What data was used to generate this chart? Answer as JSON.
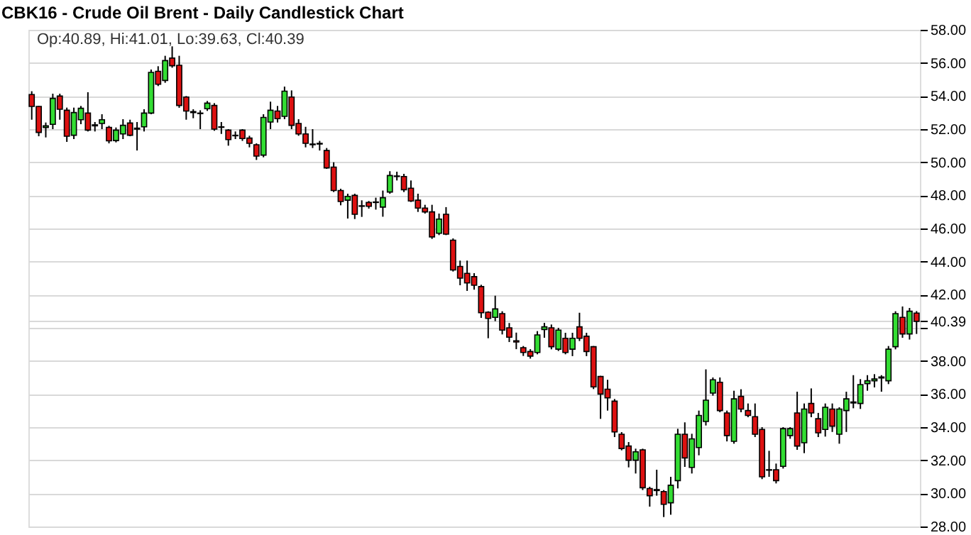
{
  "chart_data": {
    "type": "candlestick",
    "title": "CBK16 - Crude Oil Brent - Daily Candlestick Chart",
    "annotations": [
      "Op:40.89, Hi:41.01, Lo:39.63, Cl:40.39"
    ],
    "categories": [
      null,
      null,
      null,
      null,
      null,
      null,
      null,
      null,
      null,
      null,
      null,
      null,
      null,
      null,
      null,
      null,
      null,
      null,
      null,
      null,
      null,
      null,
      null,
      null,
      null,
      null,
      null,
      null,
      null,
      null,
      null,
      null,
      null,
      null,
      null,
      null,
      null,
      null,
      null,
      null,
      null,
      null,
      null,
      null,
      null,
      null,
      null,
      null,
      null,
      null,
      null,
      null,
      null,
      null,
      null,
      null,
      null,
      null,
      null,
      null,
      null,
      null,
      null,
      null,
      null,
      null,
      null,
      null,
      null,
      null,
      null,
      null,
      null,
      null,
      null,
      null,
      null,
      null,
      null,
      null,
      null,
      null,
      null,
      null,
      null,
      null,
      null,
      null,
      null,
      null,
      null,
      null,
      null,
      null,
      null,
      null,
      null,
      null,
      null,
      null,
      null,
      null,
      null,
      null,
      null,
      null,
      null,
      null,
      null,
      null,
      null,
      null,
      null,
      null,
      null,
      null,
      null,
      null,
      null,
      null,
      null,
      null,
      null,
      null,
      null,
      null,
      null
    ],
    "ohlc": [
      [
        54.09,
        54.29,
        52.57,
        53.37
      ],
      [
        53.37,
        53.4,
        51.57,
        51.8
      ],
      [
        52.1,
        52.4,
        51.5,
        52.2
      ],
      [
        52.29,
        54.14,
        52.0,
        53.86
      ],
      [
        54.0,
        54.14,
        52.57,
        53.2
      ],
      [
        53.14,
        53.3,
        51.23,
        51.57
      ],
      [
        51.63,
        53.3,
        51.4,
        53.0
      ],
      [
        52.57,
        53.4,
        52.3,
        53.26
      ],
      [
        52.97,
        54.23,
        51.86,
        51.94
      ],
      [
        52.2,
        52.43,
        51.86,
        52.26
      ],
      [
        52.34,
        52.9,
        52.0,
        52.57
      ],
      [
        52.11,
        52.2,
        51.14,
        51.29
      ],
      [
        51.31,
        52.1,
        51.2,
        51.94
      ],
      [
        51.71,
        52.6,
        51.4,
        52.23
      ],
      [
        52.37,
        52.57,
        51.57,
        51.63
      ],
      [
        52.0,
        52.43,
        50.71,
        52.06
      ],
      [
        52.14,
        53.2,
        51.86,
        52.97
      ],
      [
        52.97,
        55.6,
        52.9,
        55.43
      ],
      [
        55.49,
        55.8,
        54.6,
        54.71
      ],
      [
        54.94,
        56.43,
        54.8,
        56.14
      ],
      [
        56.29,
        57.0,
        55.71,
        55.83
      ],
      [
        55.86,
        56.43,
        53.29,
        53.43
      ],
      [
        53.94,
        54.0,
        52.57,
        53.09
      ],
      [
        53.06,
        53.2,
        52.66,
        53.0
      ],
      [
        52.97,
        53.14,
        52.0,
        52.94
      ],
      [
        53.23,
        53.7,
        53.1,
        53.57
      ],
      [
        53.43,
        53.57,
        51.9,
        52.0
      ],
      [
        52.14,
        52.43,
        51.71,
        52.11
      ],
      [
        51.94,
        52.0,
        51.0,
        51.37
      ],
      [
        51.63,
        51.86,
        51.4,
        51.6
      ],
      [
        51.94,
        52.0,
        51.29,
        51.43
      ],
      [
        51.46,
        51.6,
        50.9,
        51.14
      ],
      [
        51.06,
        51.14,
        50.14,
        50.37
      ],
      [
        50.43,
        52.9,
        50.3,
        52.71
      ],
      [
        52.43,
        53.66,
        52.0,
        53.14
      ],
      [
        53.09,
        53.4,
        52.4,
        52.63
      ],
      [
        52.77,
        54.57,
        52.6,
        54.29
      ],
      [
        53.94,
        54.34,
        52.0,
        52.23
      ],
      [
        52.34,
        52.6,
        51.6,
        51.71
      ],
      [
        51.71,
        52.14,
        50.9,
        51.14
      ],
      [
        51.1,
        52.0,
        50.86,
        51.06
      ],
      [
        51.14,
        51.29,
        50.71,
        51.1
      ],
      [
        50.71,
        50.86,
        49.6,
        49.66
      ],
      [
        49.71,
        50.0,
        48.2,
        48.29
      ],
      [
        48.29,
        48.4,
        47.4,
        47.63
      ],
      [
        47.71,
        48.1,
        46.6,
        47.94
      ],
      [
        48.0,
        48.1,
        46.57,
        46.86
      ],
      [
        47.34,
        47.7,
        46.7,
        47.37
      ],
      [
        47.57,
        47.66,
        47.2,
        47.34
      ],
      [
        47.57,
        47.86,
        47.14,
        47.6
      ],
      [
        47.29,
        48.29,
        46.71,
        47.86
      ],
      [
        48.2,
        49.46,
        48.1,
        49.2
      ],
      [
        49.14,
        49.43,
        48.9,
        49.17
      ],
      [
        49.14,
        49.3,
        48.2,
        48.34
      ],
      [
        48.43,
        48.9,
        47.6,
        47.66
      ],
      [
        47.71,
        48.1,
        47.0,
        47.23
      ],
      [
        47.23,
        47.43,
        46.9,
        47.0
      ],
      [
        47.0,
        47.43,
        45.37,
        45.49
      ],
      [
        45.71,
        46.9,
        45.6,
        46.57
      ],
      [
        46.86,
        47.29,
        45.6,
        45.66
      ],
      [
        45.29,
        45.4,
        43.4,
        43.49
      ],
      [
        43.71,
        44.06,
        42.57,
        43.0
      ],
      [
        43.29,
        44.06,
        42.23,
        42.71
      ],
      [
        43.09,
        43.3,
        42.3,
        42.57
      ],
      [
        42.49,
        42.6,
        40.6,
        40.91
      ],
      [
        40.94,
        41.0,
        39.37,
        40.57
      ],
      [
        40.63,
        41.94,
        40.4,
        41.14
      ],
      [
        40.86,
        41.0,
        39.6,
        39.86
      ],
      [
        40.0,
        40.29,
        39.14,
        39.43
      ],
      [
        39.22,
        39.71,
        38.71,
        39.14
      ],
      [
        38.8,
        38.9,
        38.3,
        38.51
      ],
      [
        38.57,
        38.71,
        38.14,
        38.29
      ],
      [
        38.51,
        39.8,
        38.4,
        39.57
      ],
      [
        39.9,
        40.3,
        39.4,
        40.06
      ],
      [
        40.0,
        40.2,
        38.7,
        38.86
      ],
      [
        38.71,
        40.0,
        38.6,
        39.86
      ],
      [
        39.37,
        39.7,
        38.4,
        38.51
      ],
      [
        38.71,
        39.7,
        38.29,
        39.37
      ],
      [
        40.06,
        40.91,
        39.2,
        39.37
      ],
      [
        39.49,
        39.7,
        38.29,
        38.57
      ],
      [
        38.86,
        38.9,
        36.3,
        36.43
      ],
      [
        37.06,
        37.1,
        34.5,
        36.0
      ],
      [
        36.29,
        36.86,
        35.0,
        35.77
      ],
      [
        35.57,
        35.7,
        33.4,
        33.71
      ],
      [
        33.57,
        33.7,
        32.6,
        32.71
      ],
      [
        32.86,
        33.1,
        31.57,
        32.0
      ],
      [
        32.0,
        32.7,
        31.2,
        32.51
      ],
      [
        32.63,
        32.7,
        30.2,
        30.34
      ],
      [
        30.29,
        30.4,
        29.2,
        29.86
      ],
      [
        30.23,
        31.43,
        29.86,
        30.17
      ],
      [
        30.11,
        30.2,
        28.57,
        29.34
      ],
      [
        29.43,
        31.0,
        28.71,
        30.49
      ],
      [
        30.77,
        33.9,
        30.3,
        33.57
      ],
      [
        33.57,
        34.29,
        31.6,
        32.14
      ],
      [
        31.57,
        33.6,
        31.2,
        33.29
      ],
      [
        32.77,
        35.0,
        32.3,
        34.71
      ],
      [
        34.34,
        37.49,
        34.1,
        35.63
      ],
      [
        36.06,
        37.0,
        35.9,
        36.86
      ],
      [
        36.71,
        37.0,
        34.9,
        35.0
      ],
      [
        34.86,
        35.0,
        33.14,
        33.49
      ],
      [
        33.14,
        36.2,
        33.0,
        35.71
      ],
      [
        35.86,
        36.29,
        34.9,
        35.09
      ],
      [
        35.0,
        35.43,
        34.6,
        34.71
      ],
      [
        34.63,
        35.43,
        33.4,
        33.57
      ],
      [
        33.86,
        34.0,
        30.86,
        31.0
      ],
      [
        31.43,
        32.57,
        31.0,
        31.4
      ],
      [
        31.43,
        31.8,
        30.6,
        30.77
      ],
      [
        31.63,
        34.0,
        31.5,
        33.91
      ],
      [
        33.49,
        34.0,
        33.3,
        33.91
      ],
      [
        34.86,
        36.14,
        32.63,
        32.86
      ],
      [
        33.06,
        35.43,
        32.43,
        35.09
      ],
      [
        35.43,
        36.34,
        34.6,
        34.86
      ],
      [
        34.51,
        34.86,
        33.4,
        33.66
      ],
      [
        33.86,
        35.43,
        33.43,
        35.2
      ],
      [
        35.09,
        35.43,
        33.71,
        34.06
      ],
      [
        33.57,
        35.2,
        33.0,
        35.09
      ],
      [
        35.0,
        36.14,
        33.71,
        35.71
      ],
      [
        35.46,
        37.14,
        35.14,
        35.52
      ],
      [
        35.43,
        36.9,
        35.1,
        36.57
      ],
      [
        36.63,
        37.14,
        36.2,
        36.8
      ],
      [
        36.8,
        37.2,
        36.4,
        36.91
      ],
      [
        36.97,
        37.14,
        36.14,
        37.03
      ],
      [
        36.8,
        38.9,
        36.6,
        38.71
      ],
      [
        38.86,
        41.0,
        38.7,
        40.86
      ],
      [
        40.63,
        41.29,
        39.4,
        39.63
      ],
      [
        39.63,
        41.2,
        39.29,
        41.0
      ],
      [
        40.89,
        41.01,
        39.63,
        40.39
      ]
    ],
    "colors": [
      "#dd1111",
      "#dd1111",
      "#33dd33",
      "#33dd33",
      "#dd1111",
      "#dd1111",
      "#33dd33",
      "#33dd33",
      "#dd1111",
      "#33dd33",
      "#33dd33",
      "#dd1111",
      "#33dd33",
      "#33dd33",
      "#dd1111",
      "#33dd33",
      "#33dd33",
      "#33dd33",
      "#dd1111",
      "#33dd33",
      "#dd1111",
      "#dd1111",
      "#dd1111",
      "#dd1111",
      "#dd1111",
      "#33dd33",
      "#dd1111",
      "#dd1111",
      "#dd1111",
      "#dd1111",
      "#dd1111",
      "#dd1111",
      "#dd1111",
      "#33dd33",
      "#33dd33",
      "#dd1111",
      "#33dd33",
      "#dd1111",
      "#dd1111",
      "#dd1111",
      "#dd1111",
      "#dd1111",
      "#dd1111",
      "#dd1111",
      "#dd1111",
      "#33dd33",
      "#dd1111",
      "#33dd33",
      "#dd1111",
      "#33dd33",
      "#33dd33",
      "#33dd33",
      "#33dd33",
      "#dd1111",
      "#dd1111",
      "#dd1111",
      "#dd1111",
      "#dd1111",
      "#33dd33",
      "#dd1111",
      "#dd1111",
      "#dd1111",
      "#dd1111",
      "#dd1111",
      "#dd1111",
      "#dd1111",
      "#33dd33",
      "#dd1111",
      "#dd1111",
      "#dd1111",
      "#dd1111",
      "#dd1111",
      "#33dd33",
      "#33dd33",
      "#dd1111",
      "#33dd33",
      "#dd1111",
      "#33dd33",
      "#dd1111",
      "#dd1111",
      "#dd1111",
      "#dd1111",
      "#dd1111",
      "#dd1111",
      "#dd1111",
      "#dd1111",
      "#33dd33",
      "#dd1111",
      "#dd1111",
      "#dd1111",
      "#dd1111",
      "#33dd33",
      "#33dd33",
      "#dd1111",
      "#33dd33",
      "#33dd33",
      "#33dd33",
      "#33dd33",
      "#dd1111",
      "#dd1111",
      "#33dd33",
      "#dd1111",
      "#dd1111",
      "#dd1111",
      "#dd1111",
      "#dd1111",
      "#dd1111",
      "#33dd33",
      "#33dd33",
      "#dd1111",
      "#33dd33",
      "#dd1111",
      "#dd1111",
      "#33dd33",
      "#dd1111",
      "#33dd33",
      "#33dd33",
      "#33dd33",
      "#33dd33",
      "#33dd33",
      "#33dd33",
      "#33dd33",
      "#33dd33",
      "#33dd33",
      "#dd1111",
      "#33dd33",
      "#dd1111"
    ],
    "ylim": [
      28,
      58
    ],
    "yticks": [
      {
        "value": 28,
        "label": "28.00"
      },
      {
        "value": 30,
        "label": "30.00"
      },
      {
        "value": 32,
        "label": "32.00"
      },
      {
        "value": 34,
        "label": "34.00"
      },
      {
        "value": 36,
        "label": "36.00"
      },
      {
        "value": 38,
        "label": "38.00"
      },
      {
        "value": 40,
        "label": null
      },
      {
        "value": 40.39,
        "label": "40.39"
      },
      {
        "value": 42,
        "label": "42.00"
      },
      {
        "value": 44,
        "label": "44.00"
      },
      {
        "value": 46,
        "label": "46.00"
      },
      {
        "value": 48,
        "label": "48.00"
      },
      {
        "value": 50,
        "label": "50.00"
      },
      {
        "value": 52,
        "label": "52.00"
      },
      {
        "value": 54,
        "label": "54.00"
      },
      {
        "value": 56,
        "label": "56.00"
      },
      {
        "value": 58,
        "label": "58.00"
      }
    ],
    "grid": "y",
    "tick_labels": "y"
  }
}
